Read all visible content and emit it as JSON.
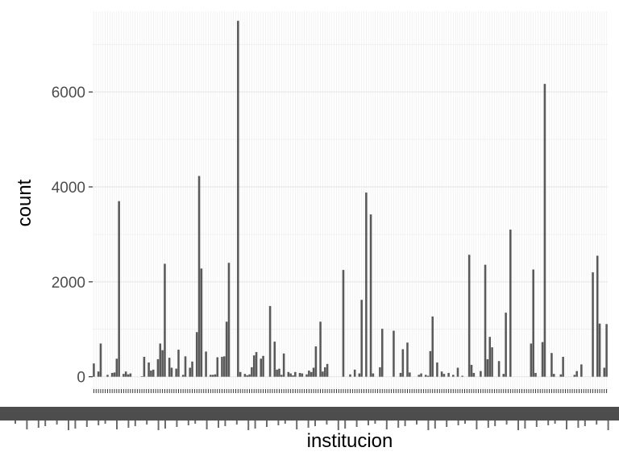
{
  "chart_data": {
    "type": "bar",
    "xlabel": "institucion",
    "ylabel": "count",
    "ylim": [
      -260,
      7700
    ],
    "y_ticks": [
      0,
      2000,
      4000,
      6000
    ],
    "grid": true,
    "x_tick_labels_legible": false,
    "colors": {
      "bar": "#595959",
      "panel": "#ffffff",
      "grid": "#ebebeb",
      "tick_text": "#4d4d4d"
    },
    "values": [
      280,
      0,
      110,
      700,
      0,
      0,
      40,
      0,
      80,
      90,
      380,
      3700,
      0,
      60,
      110,
      50,
      70,
      0,
      0,
      0,
      0,
      10,
      420,
      0,
      300,
      130,
      150,
      0,
      370,
      700,
      560,
      2380,
      0,
      400,
      190,
      0,
      170,
      570,
      0,
      40,
      430,
      0,
      190,
      320,
      0,
      940,
      4230,
      2280,
      0,
      530,
      0,
      40,
      40,
      50,
      410,
      0,
      420,
      430,
      1160,
      2400,
      0,
      0,
      0,
      7500,
      100,
      0,
      60,
      30,
      50,
      200,
      450,
      520,
      0,
      380,
      440,
      0,
      0,
      1490,
      0,
      740,
      150,
      170,
      40,
      490,
      0,
      100,
      70,
      30,
      100,
      0,
      80,
      70,
      0,
      50,
      130,
      100,
      190,
      640,
      0,
      1160,
      110,
      200,
      270,
      0,
      0,
      0,
      0,
      0,
      0,
      2250,
      0,
      0,
      50,
      0,
      150,
      0,
      70,
      1620,
      0,
      3880,
      0,
      3420,
      70,
      0,
      0,
      200,
      1010,
      0,
      0,
      0,
      0,
      970,
      0,
      0,
      80,
      580,
      0,
      720,
      90,
      0,
      0,
      0,
      40,
      70,
      0,
      40,
      20,
      540,
      1270,
      0,
      300,
      0,
      110,
      60,
      0,
      80,
      0,
      40,
      0,
      190,
      0,
      20,
      0,
      0,
      2570,
      250,
      80,
      0,
      0,
      120,
      0,
      2360,
      370,
      840,
      620,
      0,
      0,
      330,
      0,
      60,
      1350,
      0,
      3100,
      0,
      0,
      0,
      0,
      0,
      0,
      0,
      0,
      700,
      2260,
      80,
      0,
      0,
      730,
      6170,
      0,
      0,
      500,
      60,
      0,
      0,
      50,
      420,
      0,
      0,
      0,
      0,
      40,
      120,
      0,
      260,
      0,
      0,
      0,
      0,
      2200,
      0,
      2550,
      1120,
      0,
      190,
      1110
    ]
  }
}
